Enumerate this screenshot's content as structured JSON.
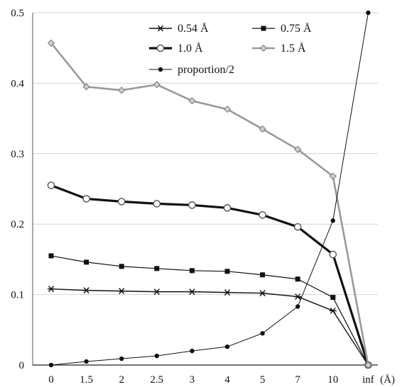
{
  "chart_data": {
    "type": "line",
    "categories": [
      "0",
      "1.5",
      "2",
      "2.5",
      "3",
      "4",
      "5",
      "7",
      "10",
      "inf"
    ],
    "x_unit_label": "(Å)",
    "ylim": [
      0,
      0.5
    ],
    "yticks": [
      "0",
      "0.1",
      "0.2",
      "0.3",
      "0.4",
      "0.5"
    ],
    "grid": true,
    "legend_position": "top-right",
    "series": [
      {
        "name": "0.54 Å",
        "marker": "asterisk",
        "color": "#111111",
        "width": 1.4,
        "values": [
          0.108,
          0.106,
          0.105,
          0.104,
          0.104,
          0.103,
          0.102,
          0.097,
          0.077,
          0.0
        ]
      },
      {
        "name": "0.75 Å",
        "marker": "square",
        "color": "#111111",
        "width": 1.2,
        "values": [
          0.155,
          0.146,
          0.14,
          0.137,
          0.134,
          0.133,
          0.128,
          0.122,
          0.096,
          0.0
        ]
      },
      {
        "name": "1.0 Å",
        "marker": "circle-open",
        "color": "#111111",
        "width": 3.2,
        "values": [
          0.255,
          0.236,
          0.232,
          0.229,
          0.227,
          0.223,
          0.213,
          0.196,
          0.157,
          0.0
        ]
      },
      {
        "name": "1.5 Å",
        "marker": "diamond",
        "color": "#999999",
        "width": 2.6,
        "values": [
          0.457,
          0.395,
          0.39,
          0.398,
          0.375,
          0.363,
          0.335,
          0.306,
          0.268,
          0.0
        ]
      },
      {
        "name": "proportion/2",
        "marker": "dot",
        "color": "#111111",
        "width": 1.0,
        "values": [
          0.0,
          0.005,
          0.009,
          0.013,
          0.02,
          0.026,
          0.045,
          0.083,
          0.205,
          0.5
        ]
      }
    ]
  }
}
